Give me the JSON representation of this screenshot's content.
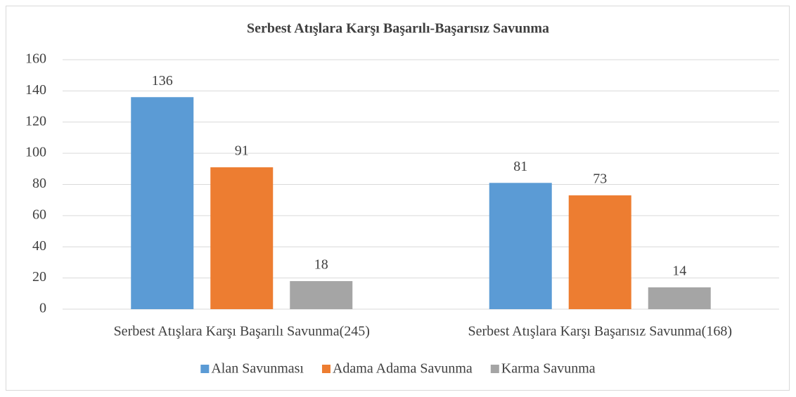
{
  "chart_data": {
    "type": "bar",
    "title": "Serbest Atışlara Karşı Başarılı-Başarısız Savunma",
    "categories": [
      "Serbest Atışlara Karşı Başarılı Savunma(245)",
      "Serbest Atışlara Karşı Başarısız Savunma(168)"
    ],
    "series": [
      {
        "name": "Alan Savunması",
        "color": "#5b9bd5",
        "values": [
          136,
          81
        ]
      },
      {
        "name": "Adama Adama Savunma",
        "color": "#ed7d31",
        "values": [
          91,
          73
        ]
      },
      {
        "name": "Karma Savunma",
        "color": "#a5a5a5",
        "values": [
          18,
          14
        ]
      }
    ],
    "ylim": [
      0,
      160
    ],
    "yticks": [
      0,
      20,
      40,
      60,
      80,
      100,
      120,
      140,
      160
    ],
    "grid": true,
    "legend": "bottom"
  }
}
